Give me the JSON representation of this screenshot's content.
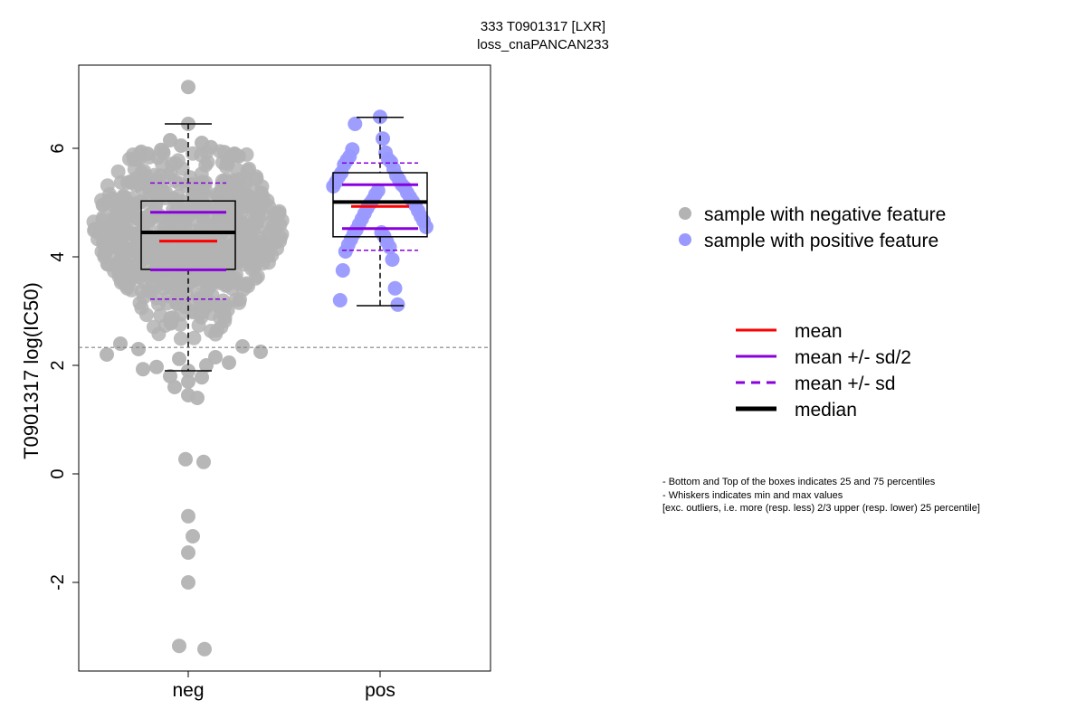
{
  "chart_data": {
    "type": "box-beeswarm",
    "title_lines": [
      "333 T0901317 [LXR]",
      "loss_cnaPANCAN233"
    ],
    "xlabel": "",
    "ylabel": "T0901317 log(IC50)",
    "ylim": [
      -3.6,
      7.6
    ],
    "yticks": [
      -2,
      0,
      2,
      4,
      6
    ],
    "categories": [
      "neg",
      "pos"
    ],
    "threshold_line": 2.33,
    "colors": {
      "neg": "#b3b3b3",
      "pos": "#9999ff",
      "mean": "#ff0000",
      "sd": "#8800dd",
      "median": "#000000",
      "threshold": "#808080"
    },
    "groups": [
      {
        "name": "neg",
        "stats": {
          "min": 1.9,
          "q1": 3.77,
          "median": 4.45,
          "q3": 5.03,
          "max": 6.45,
          "mean": 4.29,
          "mean_plus_half_sd": 4.82,
          "mean_minus_half_sd": 3.76,
          "mean_plus_sd": 5.36,
          "mean_minus_sd": 3.22
        },
        "n_points": 720,
        "points_low": [
          7.13,
          6.45,
          6.15,
          6.1,
          6.05,
          6.02,
          5.97,
          5.93,
          5.9,
          5.88,
          2.4,
          2.35,
          2.3,
          2.25,
          2.2,
          2.15,
          2.12,
          2.05,
          2.0,
          1.97,
          1.93,
          1.9,
          1.8,
          1.78,
          1.7,
          1.6,
          1.45,
          1.4,
          0.27,
          0.22,
          -0.78,
          -1.15,
          -1.45,
          -2.0,
          -3.17,
          -3.23
        ]
      },
      {
        "name": "pos",
        "stats": {
          "min": 3.1,
          "q1": 4.37,
          "median": 5.01,
          "q3": 5.55,
          "max": 6.57,
          "mean": 4.93,
          "mean_plus_half_sd": 5.33,
          "mean_minus_half_sd": 4.52,
          "mean_plus_sd": 5.73,
          "mean_minus_sd": 4.12
        },
        "points": [
          6.58,
          6.45,
          6.18,
          5.98,
          5.92,
          5.85,
          5.8,
          5.78,
          5.75,
          5.7,
          5.62,
          5.55,
          5.5,
          5.48,
          5.42,
          5.38,
          5.33,
          5.3,
          5.28,
          5.22,
          5.18,
          5.15,
          5.1,
          5.05,
          5.02,
          4.98,
          4.95,
          4.9,
          4.85,
          4.8,
          4.75,
          4.7,
          4.66,
          4.6,
          4.55,
          4.5,
          4.45,
          4.42,
          4.38,
          4.32,
          4.28,
          4.22,
          4.18,
          4.1,
          3.95,
          3.75,
          3.42,
          3.2,
          3.12
        ]
      }
    ],
    "legend_points": [
      {
        "label": "sample with negative feature",
        "color": "#b3b3b3"
      },
      {
        "label": "sample with positive feature",
        "color": "#9999ff"
      }
    ],
    "legend_lines": [
      {
        "label": "mean",
        "color": "#ff0000",
        "style": "solid"
      },
      {
        "label": "mean +/- sd/2",
        "color": "#8800dd",
        "style": "solid"
      },
      {
        "label": "mean +/- sd",
        "color": "#8800dd",
        "style": "dashed"
      },
      {
        "label": "median",
        "color": "#000000",
        "style": "bold"
      }
    ],
    "footnote": [
      "- Bottom and Top of the boxes indicates 25 and 75 percentiles",
      "- Whiskers indicates min and max values",
      "[exc. outliers, i.e. more (resp. less) 2/3 upper (resp. lower) 25 percentile]"
    ],
    "grid": false
  }
}
